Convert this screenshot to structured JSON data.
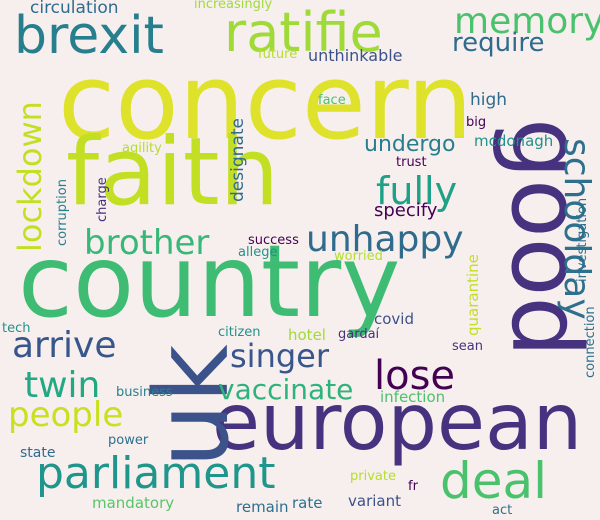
{
  "colors": {
    "background": "#f7efed",
    "yellow": "#dfe22a",
    "lime": "#a0da39",
    "green": "#4ac16d",
    "teal": "#1fa187",
    "tealblue": "#277f8e",
    "blue": "#365c8d",
    "indigo": "#46327e",
    "purple": "#440154"
  },
  "words": {
    "concern": "concern",
    "country": "country",
    "faith": "faith",
    "european": "european",
    "uk": "uk",
    "good": "good",
    "brexit": "brexit",
    "ratifie": "ratifie",
    "memory": "memory",
    "parliament": "parliament",
    "deal": "deal",
    "unhappy": "unhappy",
    "brother": "brother",
    "fully": "fully",
    "schoolday": "schoolday",
    "lockdown": "lockdown",
    "singer": "singer",
    "arrive": "arrive",
    "lose": "lose",
    "twin": "twin",
    "people": "people",
    "vaccinate": "vaccinate",
    "require": "require",
    "undergo": "undergo",
    "specify": "specify",
    "circulation": "circulation",
    "increasingly": "increasingly",
    "future": "future",
    "unthinkable": "unthinkable",
    "high": "high",
    "face": "face",
    "big": "big",
    "mcdonagh": "mcdonagh",
    "agility": "agility",
    "trust": "trust",
    "designate": "designate",
    "corruption": "corruption",
    "charge": "charge",
    "investigation": "investigation",
    "quarantine": "quarantine",
    "success": "success",
    "allege": "allege",
    "worried": "worried",
    "covid": "covid",
    "hotel": "hotel",
    "citizen": "citizen",
    "gardai": "gardaí",
    "sean": "sean",
    "tech": "tech",
    "connection": "connection",
    "business": "business",
    "infection": "infection",
    "power": "power",
    "state": "state",
    "mandatory": "mandatory",
    "remain": "remain",
    "rate": "rate",
    "private": "private",
    "fr": "fr",
    "variant": "variant",
    "act": "act"
  }
}
